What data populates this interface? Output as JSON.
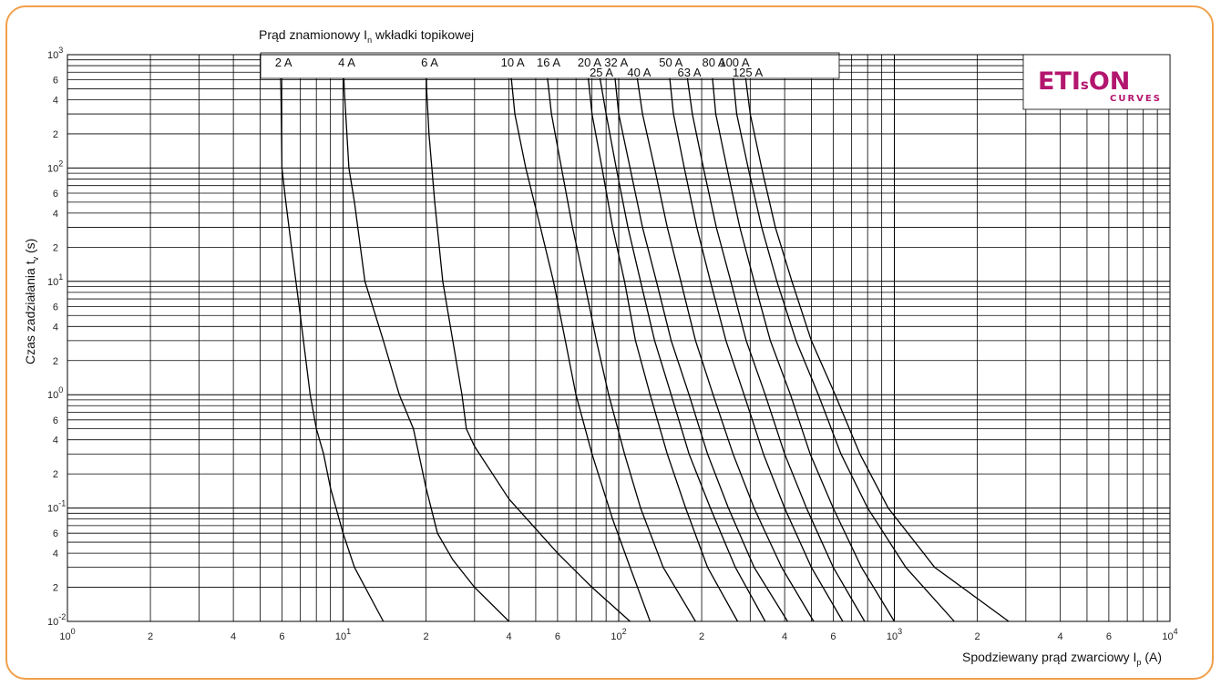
{
  "chart_data": {
    "type": "line",
    "title": "Prąd znamionowy In wkładki topikowej",
    "title_main": "Prąd znamionowy I",
    "title_sub": "n",
    "title_rest": " wkładki topikowej",
    "xlabel_main": "Spodziewany prąd zwarciowy I",
    "xlabel_sub": "p",
    "xlabel_rest": " (A)",
    "ylabel_main": "Czas zadziałania t",
    "ylabel_sub": "v",
    "ylabel_rest": " (s)",
    "x_scale": "log",
    "y_scale": "log",
    "xlim": [
      1,
      10000
    ],
    "ylim": [
      0.01,
      1000
    ],
    "grid": true,
    "x_ticks": [
      {
        "v": 1,
        "base": "10",
        "exp": "0"
      },
      {
        "v": 2,
        "base": "2"
      },
      {
        "v": 4,
        "base": "4"
      },
      {
        "v": 6,
        "base": "6"
      },
      {
        "v": 10,
        "base": "10",
        "exp": "1"
      },
      {
        "v": 20,
        "base": "2"
      },
      {
        "v": 40,
        "base": "4"
      },
      {
        "v": 60,
        "base": "6"
      },
      {
        "v": 100,
        "base": "10",
        "exp": "2"
      },
      {
        "v": 200,
        "base": "2"
      },
      {
        "v": 400,
        "base": "4"
      },
      {
        "v": 600,
        "base": "6"
      },
      {
        "v": 1000,
        "base": "10",
        "exp": "3"
      },
      {
        "v": 2000,
        "base": "2"
      },
      {
        "v": 4000,
        "base": "4"
      },
      {
        "v": 6000,
        "base": "6"
      },
      {
        "v": 10000,
        "base": "10",
        "exp": "4"
      }
    ],
    "y_ticks": [
      {
        "v": 0.01,
        "base": "10",
        "exp": "-2"
      },
      {
        "v": 0.02,
        "base": "2"
      },
      {
        "v": 0.04,
        "base": "4"
      },
      {
        "v": 0.06,
        "base": "6"
      },
      {
        "v": 0.1,
        "base": "10",
        "exp": "-1"
      },
      {
        "v": 0.2,
        "base": "2"
      },
      {
        "v": 0.4,
        "base": "4"
      },
      {
        "v": 0.6,
        "base": "6"
      },
      {
        "v": 1,
        "base": "10",
        "exp": "0"
      },
      {
        "v": 2,
        "base": "2"
      },
      {
        "v": 4,
        "base": "4"
      },
      {
        "v": 6,
        "base": "6"
      },
      {
        "v": 10,
        "base": "10",
        "exp": "1"
      },
      {
        "v": 20,
        "base": "2"
      },
      {
        "v": 40,
        "base": "4"
      },
      {
        "v": 60,
        "base": "6"
      },
      {
        "v": 100,
        "base": "10",
        "exp": "2"
      },
      {
        "v": 200,
        "base": "2"
      },
      {
        "v": 400,
        "base": "4"
      },
      {
        "v": 600,
        "base": "6"
      },
      {
        "v": 1000,
        "base": "10",
        "exp": "3"
      }
    ],
    "series": [
      {
        "name": "2 A",
        "points": [
          [
            5.9,
            1000
          ],
          [
            5.95,
            500
          ],
          [
            6.0,
            100
          ],
          [
            6.2,
            50
          ],
          [
            6.5,
            20
          ],
          [
            7.0,
            5
          ],
          [
            7.6,
            1
          ],
          [
            8.0,
            0.5
          ],
          [
            8.5,
            0.3
          ],
          [
            9.0,
            0.15
          ],
          [
            10.0,
            0.06
          ],
          [
            11.0,
            0.03
          ],
          [
            14.0,
            0.01
          ]
        ]
      },
      {
        "name": "4 A",
        "points": [
          [
            10.0,
            1000
          ],
          [
            10.1,
            500
          ],
          [
            10.5,
            100
          ],
          [
            11.0,
            50
          ],
          [
            12.0,
            10
          ],
          [
            14.0,
            3
          ],
          [
            16.0,
            1
          ],
          [
            18.0,
            0.5
          ],
          [
            20.0,
            0.15
          ],
          [
            22.0,
            0.06
          ],
          [
            25.0,
            0.035
          ],
          [
            30.0,
            0.02
          ],
          [
            40.0,
            0.01
          ]
        ]
      },
      {
        "name": "6 A",
        "points": [
          [
            20.0,
            1000
          ],
          [
            20.1,
            500
          ],
          [
            20.5,
            200
          ],
          [
            21.5,
            50
          ],
          [
            23.0,
            10
          ],
          [
            25.0,
            3
          ],
          [
            27.0,
            1
          ],
          [
            28.0,
            0.5
          ],
          [
            30.0,
            0.35
          ],
          [
            40.0,
            0.12
          ],
          [
            60.0,
            0.04
          ],
          [
            80.0,
            0.02
          ],
          [
            110.0,
            0.01
          ]
        ]
      },
      {
        "name": "10 A",
        "points": [
          [
            40.0,
            1000
          ],
          [
            42.0,
            300
          ],
          [
            46.0,
            100
          ],
          [
            52.0,
            30
          ],
          [
            58.0,
            10
          ],
          [
            64.0,
            3
          ],
          [
            70.0,
            1
          ],
          [
            80.0,
            0.3
          ],
          [
            95.0,
            0.08
          ],
          [
            110.0,
            0.03
          ],
          [
            130.0,
            0.01
          ]
        ]
      },
      {
        "name": "16 A",
        "points": [
          [
            54.0,
            1000
          ],
          [
            57.0,
            300
          ],
          [
            62.0,
            100
          ],
          [
            68.0,
            30
          ],
          [
            75.0,
            10
          ],
          [
            83.0,
            3
          ],
          [
            92.0,
            1
          ],
          [
            105.0,
            0.3
          ],
          [
            120.0,
            0.1
          ],
          [
            145.0,
            0.03
          ],
          [
            190.0,
            0.01
          ]
        ]
      },
      {
        "name": "20 A",
        "points": [
          [
            76.0,
            1000
          ],
          [
            80.0,
            300
          ],
          [
            87.0,
            100
          ],
          [
            95.0,
            30
          ],
          [
            105.0,
            10
          ],
          [
            115.0,
            3
          ],
          [
            130.0,
            1
          ],
          [
            150.0,
            0.3
          ],
          [
            175.0,
            0.1
          ],
          [
            210.0,
            0.03
          ],
          [
            270.0,
            0.01
          ]
        ]
      },
      {
        "name": "25 A",
        "points": [
          [
            84.0,
            800
          ],
          [
            90.0,
            300
          ],
          [
            98.0,
            100
          ],
          [
            108.0,
            30
          ],
          [
            120.0,
            10
          ],
          [
            135.0,
            3
          ],
          [
            155.0,
            1
          ],
          [
            180.0,
            0.3
          ],
          [
            215.0,
            0.1
          ],
          [
            265.0,
            0.03
          ],
          [
            340.0,
            0.01
          ]
        ]
      },
      {
        "name": "32 A",
        "points": [
          [
            95.0,
            1000
          ],
          [
            100.0,
            300
          ],
          [
            110.0,
            100
          ],
          [
            122.0,
            30
          ],
          [
            137.0,
            10
          ],
          [
            155.0,
            3
          ],
          [
            180.0,
            1
          ],
          [
            210.0,
            0.3
          ],
          [
            250.0,
            0.1
          ],
          [
            310.0,
            0.03
          ],
          [
            410.0,
            0.01
          ]
        ]
      },
      {
        "name": "40 A",
        "points": [
          [
            115.0,
            800
          ],
          [
            122.0,
            300
          ],
          [
            135.0,
            100
          ],
          [
            150.0,
            30
          ],
          [
            168.0,
            10
          ],
          [
            190.0,
            3
          ],
          [
            220.0,
            1
          ],
          [
            260.0,
            0.3
          ],
          [
            310.0,
            0.1
          ],
          [
            390.0,
            0.03
          ],
          [
            510.0,
            0.01
          ]
        ]
      },
      {
        "name": "50 A",
        "points": [
          [
            150.0,
            1000
          ],
          [
            158.0,
            300
          ],
          [
            173.0,
            100
          ],
          [
            192.0,
            30
          ],
          [
            215.0,
            10
          ],
          [
            245.0,
            3
          ],
          [
            285.0,
            1
          ],
          [
            335.0,
            0.3
          ],
          [
            400.0,
            0.1
          ],
          [
            500.0,
            0.03
          ],
          [
            650.0,
            0.01
          ]
        ]
      },
      {
        "name": "63 A",
        "points": [
          [
            175.0,
            800
          ],
          [
            185.0,
            300
          ],
          [
            203.0,
            100
          ],
          [
            226.0,
            30
          ],
          [
            255.0,
            10
          ],
          [
            290.0,
            3
          ],
          [
            340.0,
            1
          ],
          [
            400.0,
            0.3
          ],
          [
            480.0,
            0.1
          ],
          [
            600.0,
            0.03
          ],
          [
            780.0,
            0.01
          ]
        ]
      },
      {
        "name": "80 A",
        "points": [
          [
            215.0,
            1000
          ],
          [
            225.0,
            300
          ],
          [
            247.0,
            100
          ],
          [
            275.0,
            30
          ],
          [
            310.0,
            10
          ],
          [
            355.0,
            3
          ],
          [
            420.0,
            1
          ],
          [
            495.0,
            0.3
          ],
          [
            600.0,
            0.1
          ],
          [
            760.0,
            0.03
          ],
          [
            1000.0,
            0.01
          ]
        ]
      },
      {
        "name": "100 A",
        "points": [
          [
            255.0,
            1000
          ],
          [
            268.0,
            300
          ],
          [
            295.0,
            100
          ],
          [
            330.0,
            30
          ],
          [
            375.0,
            10
          ],
          [
            440.0,
            3
          ],
          [
            530.0,
            1
          ],
          [
            640.0,
            0.3
          ],
          [
            800.0,
            0.1
          ],
          [
            1100.0,
            0.03
          ],
          [
            1650.0,
            0.01
          ]
        ]
      },
      {
        "name": "125 A",
        "points": [
          [
            285.0,
            800
          ],
          [
            300.0,
            300
          ],
          [
            330.0,
            100
          ],
          [
            370.0,
            30
          ],
          [
            425.0,
            10
          ],
          [
            500.0,
            3
          ],
          [
            610.0,
            1
          ],
          [
            750.0,
            0.3
          ],
          [
            950.0,
            0.1
          ],
          [
            1400.0,
            0.03
          ],
          [
            2600.0,
            0.01
          ]
        ]
      }
    ],
    "legend_labels_row1": [
      "2 A",
      "4 A",
      "6 A",
      "10 A",
      "16 A",
      "20 A",
      "32 A",
      "50 A",
      "80 A",
      "100 A"
    ],
    "legend_labels_row2": [
      "25 A",
      "40 A",
      "63 A",
      "125 A"
    ]
  },
  "logo": {
    "brand_a": "ETI",
    "brand_s": "s",
    "brand_b": "ON",
    "sub": "CURVES",
    "color": "#b3166e"
  },
  "colors": {
    "frame": "#f0a04b",
    "curve": "#000000",
    "grid": "#000000"
  }
}
